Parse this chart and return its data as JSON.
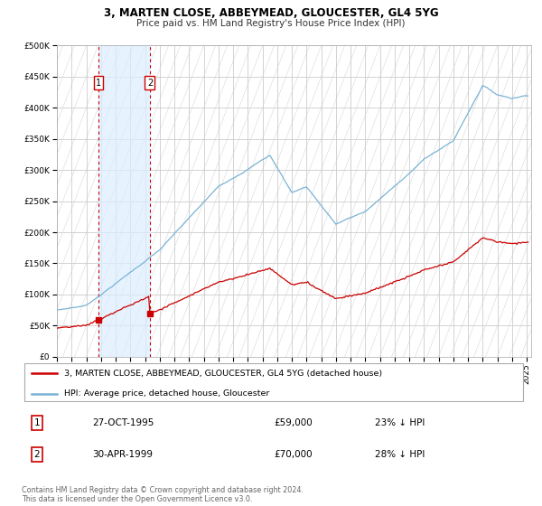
{
  "title": "3, MARTEN CLOSE, ABBEYMEAD, GLOUCESTER, GL4 5YG",
  "subtitle": "Price paid vs. HM Land Registry's House Price Index (HPI)",
  "ylim": [
    0,
    500000
  ],
  "yticks": [
    0,
    50000,
    100000,
    150000,
    200000,
    250000,
    300000,
    350000,
    400000,
    450000,
    500000
  ],
  "hpi_color": "#7ab3d4",
  "price_color": "#cc0000",
  "background_color": "#ffffff",
  "plot_bg": "#ffffff",
  "grid_color": "#cccccc",
  "hatch_color": "#e0e0e0",
  "shade_color": "#dceeff",
  "purchases": [
    {
      "date_f": 1995.83,
      "price": 59000,
      "label": "1"
    },
    {
      "date_f": 1999.33,
      "price": 70000,
      "label": "2"
    }
  ],
  "annotation_table": [
    {
      "num": "1",
      "date": "27-OCT-1995",
      "price": "£59,000",
      "note": "23% ↓ HPI"
    },
    {
      "num": "2",
      "date": "30-APR-1999",
      "price": "£70,000",
      "note": "28% ↓ HPI"
    }
  ],
  "legend_line1": "3, MARTEN CLOSE, ABBEYMEAD, GLOUCESTER, GL4 5YG (detached house)",
  "legend_line2": "HPI: Average price, detached house, Gloucester",
  "copyright": "Contains HM Land Registry data © Crown copyright and database right 2024.\nThis data is licensed under the Open Government Licence v3.0.",
  "xlim": [
    1993.0,
    2025.3
  ],
  "xticks": [
    1993,
    1994,
    1995,
    1996,
    1997,
    1998,
    1999,
    2000,
    2001,
    2002,
    2003,
    2004,
    2005,
    2006,
    2007,
    2008,
    2009,
    2010,
    2011,
    2012,
    2013,
    2014,
    2015,
    2016,
    2017,
    2018,
    2019,
    2020,
    2021,
    2022,
    2023,
    2024,
    2025
  ]
}
